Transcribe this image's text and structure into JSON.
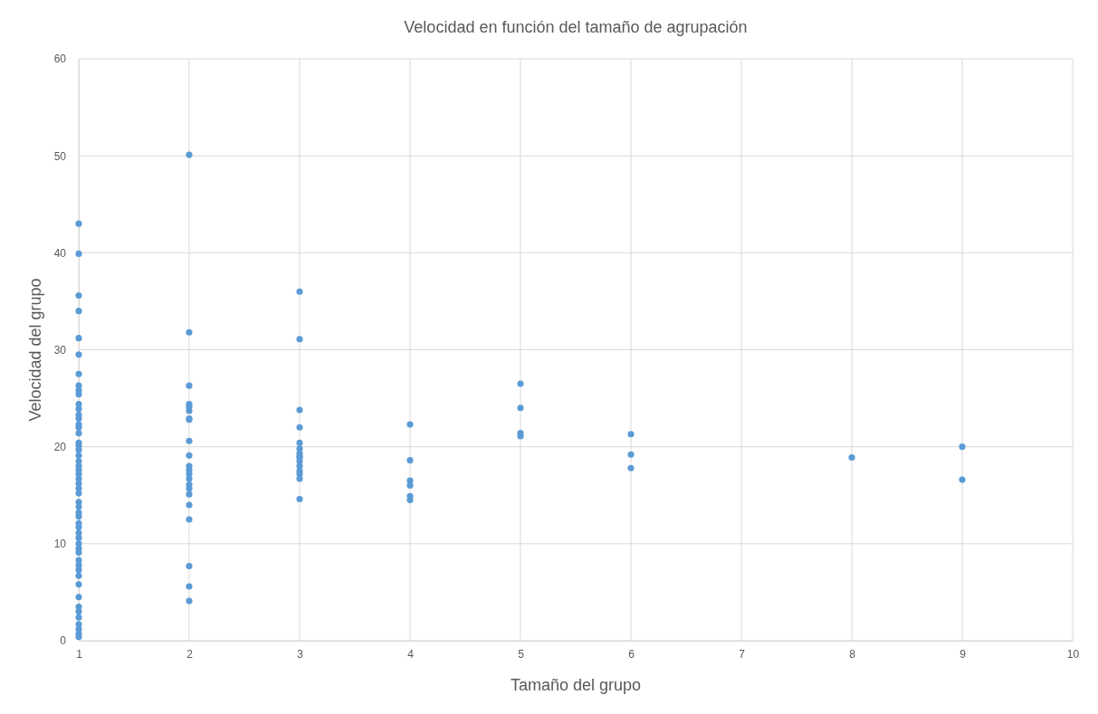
{
  "chart_data": {
    "type": "scatter",
    "title": "Velocidad en función del tamaño de agrupación",
    "xlabel": "Tamaño del grupo",
    "ylabel": "Velocidad del grupo",
    "x": [
      1,
      1,
      1,
      1,
      1,
      1,
      1,
      1,
      1,
      1,
      1,
      1,
      1,
      1,
      1,
      1,
      1,
      1,
      1,
      1,
      1,
      1,
      1,
      1,
      1,
      1,
      1,
      1,
      1,
      1,
      1,
      1,
      1,
      1,
      1,
      1,
      1,
      1,
      1,
      1,
      1,
      1,
      1,
      1,
      1,
      1,
      1,
      1,
      1,
      1,
      1,
      1,
      1,
      2,
      2,
      2,
      2,
      2,
      2,
      2,
      2,
      2,
      2,
      2,
      2,
      2,
      2,
      2,
      2,
      2,
      2,
      2,
      2,
      2,
      2,
      3,
      3,
      3,
      3,
      3,
      3,
      3,
      3,
      3,
      3,
      3,
      3,
      3,
      3,
      3,
      4,
      4,
      4,
      4,
      4,
      4,
      5,
      5,
      5,
      5,
      6,
      6,
      6,
      8,
      9,
      9
    ],
    "series": [
      {
        "color": "#5b9bd5",
        "values": [
          43.0,
          39.9,
          35.6,
          34.0,
          31.2,
          29.5,
          27.5,
          26.3,
          25.8,
          25.4,
          24.4,
          23.9,
          23.3,
          22.9,
          22.3,
          22.0,
          21.4,
          20.4,
          20.1,
          19.7,
          19.1,
          18.5,
          18.0,
          17.6,
          17.2,
          16.7,
          16.2,
          15.7,
          15.2,
          14.3,
          13.8,
          13.2,
          12.8,
          12.1,
          11.7,
          11.1,
          10.6,
          10.0,
          9.5,
          9.1,
          8.3,
          7.8,
          7.3,
          6.7,
          5.8,
          4.5,
          3.5,
          3.0,
          2.4,
          1.7,
          1.2,
          0.7,
          0.4,
          50.1,
          31.8,
          26.3,
          24.4,
          24.1,
          23.7,
          22.9,
          22.8,
          20.6,
          19.1,
          18.0,
          17.6,
          17.2,
          16.7,
          16.1,
          15.7,
          15.1,
          14.0,
          12.5,
          7.7,
          5.6,
          4.1,
          36.0,
          31.1,
          23.8,
          22.0,
          20.4,
          19.8,
          19.3,
          19.0,
          18.9,
          18.5,
          18.0,
          17.5,
          17.2,
          16.7,
          14.6,
          22.3,
          18.6,
          16.5,
          16.0,
          14.9,
          14.5,
          26.5,
          24.0,
          21.4,
          21.1,
          21.3,
          19.2,
          17.8,
          18.9,
          20.0,
          16.6
        ]
      }
    ],
    "xlim": [
      1,
      10
    ],
    "xticks": [
      1,
      2,
      3,
      4,
      5,
      6,
      7,
      8,
      9,
      10
    ],
    "ylim": [
      0,
      60
    ],
    "yticks": [
      0,
      10,
      20,
      30,
      40,
      50,
      60
    ],
    "grid": true,
    "marker": "circle"
  }
}
